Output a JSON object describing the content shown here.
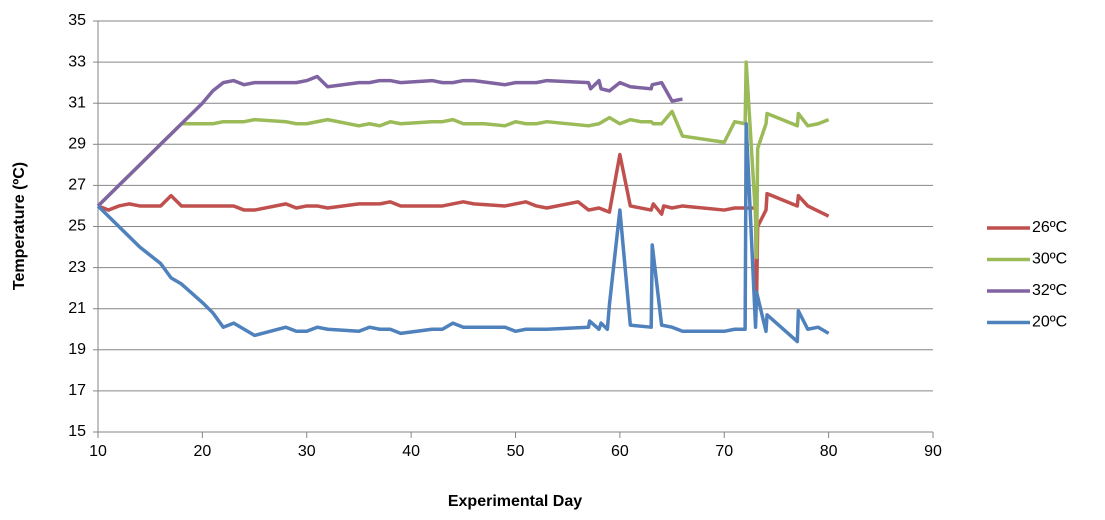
{
  "chart_data": {
    "type": "line",
    "x_label": "Experimental Day",
    "y_label": "Temperature (ºC)",
    "xlim": [
      10,
      90
    ],
    "xticks": [
      10,
      20,
      30,
      40,
      50,
      60,
      70,
      80,
      90
    ],
    "ylim": [
      15,
      35
    ],
    "yticks": [
      15,
      17,
      19,
      21,
      23,
      25,
      27,
      29,
      31,
      33,
      35
    ],
    "grid": true,
    "legend": "right",
    "series": [
      {
        "name": "26ºC",
        "color": "#c0504d",
        "x": [
          10,
          11,
          12,
          13,
          14,
          16,
          17,
          18,
          20,
          23,
          24,
          25,
          28,
          29,
          30,
          31,
          32,
          35,
          37,
          38,
          39,
          43,
          45,
          46,
          49,
          51,
          52,
          53,
          56,
          57,
          58,
          58.5,
          59,
          60,
          61,
          63,
          63.2,
          64,
          64.2,
          65,
          66,
          70,
          71,
          72,
          73,
          73.1,
          73.2,
          74,
          74.1,
          77,
          77.1,
          78,
          80
        ],
        "values": [
          26,
          25.8,
          26,
          26.1,
          26,
          26,
          26.5,
          26,
          26,
          26,
          25.8,
          25.8,
          26.1,
          25.9,
          26,
          26,
          25.9,
          26.1,
          26.1,
          26.2,
          26,
          26,
          26.2,
          26.1,
          26,
          26.2,
          26,
          25.9,
          26.2,
          25.8,
          25.9,
          25.8,
          25.7,
          28.5,
          26,
          25.8,
          26.1,
          25.6,
          26,
          25.9,
          26,
          25.8,
          25.9,
          25.9,
          25.9,
          21.5,
          25,
          25.8,
          26.6,
          26,
          26.5,
          26,
          25.5
        ]
      },
      {
        "name": "30ºC",
        "color": "#9bbb59",
        "x": [
          10,
          12,
          14,
          16,
          17,
          18,
          21,
          22,
          24,
          25,
          28,
          29,
          30,
          32,
          35,
          36,
          37,
          38,
          39,
          42,
          43,
          44,
          45,
          47,
          49,
          50,
          51,
          52,
          53,
          57,
          58,
          59,
          60,
          61,
          62,
          63,
          63.2,
          64,
          65,
          66,
          70,
          71,
          72,
          72.1,
          73,
          73.1,
          73.2,
          74,
          74.1,
          77,
          77.1,
          78,
          79,
          80
        ],
        "values": [
          26,
          27,
          28,
          29,
          29.5,
          30,
          30,
          30.1,
          30.1,
          30.2,
          30.1,
          30,
          30,
          30.2,
          29.9,
          30,
          29.9,
          30.1,
          30,
          30.1,
          30.1,
          30.2,
          30,
          30,
          29.9,
          30.1,
          30,
          30,
          30.1,
          29.9,
          30,
          30.3,
          30,
          30.2,
          30.1,
          30.1,
          30,
          30,
          30.6,
          29.4,
          29.1,
          30.1,
          30,
          33,
          25.5,
          23.5,
          28.8,
          30,
          30.5,
          29.9,
          30.5,
          29.9,
          30,
          30.2
        ]
      },
      {
        "name": "32ºC",
        "color": "#8064a2",
        "x": [
          10,
          12,
          14,
          16,
          18,
          20,
          21,
          22,
          23,
          24,
          25,
          29,
          30,
          31,
          32,
          35,
          36,
          37,
          38,
          39,
          42,
          43,
          44,
          45,
          46,
          49,
          50,
          52,
          53,
          57,
          57.2,
          58,
          58.2,
          59,
          60,
          61,
          63,
          63.1,
          64,
          65,
          66
        ],
        "values": [
          26,
          27,
          28,
          29,
          30,
          31,
          31.6,
          32,
          32.1,
          31.9,
          32,
          32,
          32.1,
          32.3,
          31.8,
          32,
          32,
          32.1,
          32.1,
          32,
          32.1,
          32,
          32,
          32.1,
          32.1,
          31.9,
          32,
          32,
          32.1,
          32,
          31.7,
          32.1,
          31.7,
          31.6,
          32,
          31.8,
          31.7,
          31.9,
          32,
          31.1,
          31.2
        ]
      },
      {
        "name": "20ºC",
        "color": "#4f81bd",
        "x": [
          10,
          11,
          12,
          13,
          14,
          16,
          17,
          18,
          20,
          21,
          22,
          23,
          25,
          28,
          29,
          30,
          31,
          32,
          35,
          36,
          37,
          38,
          39,
          42,
          43,
          44,
          45,
          49,
          50,
          51,
          53,
          57,
          57.1,
          58,
          58.2,
          58.8,
          59,
          60,
          61,
          63,
          63.1,
          64,
          65,
          66,
          70,
          71,
          72,
          72.1,
          73,
          73.1,
          74,
          74.1,
          77,
          77.1,
          78,
          79,
          80
        ],
        "values": [
          26,
          25.5,
          25,
          24.5,
          24,
          23.2,
          22.5,
          22.2,
          21.3,
          20.8,
          20.1,
          20.3,
          19.7,
          20.1,
          19.9,
          19.9,
          20.1,
          20,
          19.9,
          20.1,
          20,
          20,
          19.8,
          20,
          20,
          20.3,
          20.1,
          20.1,
          19.9,
          20,
          20,
          20.1,
          20.4,
          20,
          20.3,
          20,
          21.2,
          25.8,
          20.2,
          20.1,
          24.1,
          20.2,
          20.1,
          19.9,
          19.9,
          20,
          20,
          30,
          20.1,
          21.8,
          19.9,
          20.7,
          19.4,
          20.9,
          20,
          20.1,
          19.8
        ]
      }
    ]
  }
}
